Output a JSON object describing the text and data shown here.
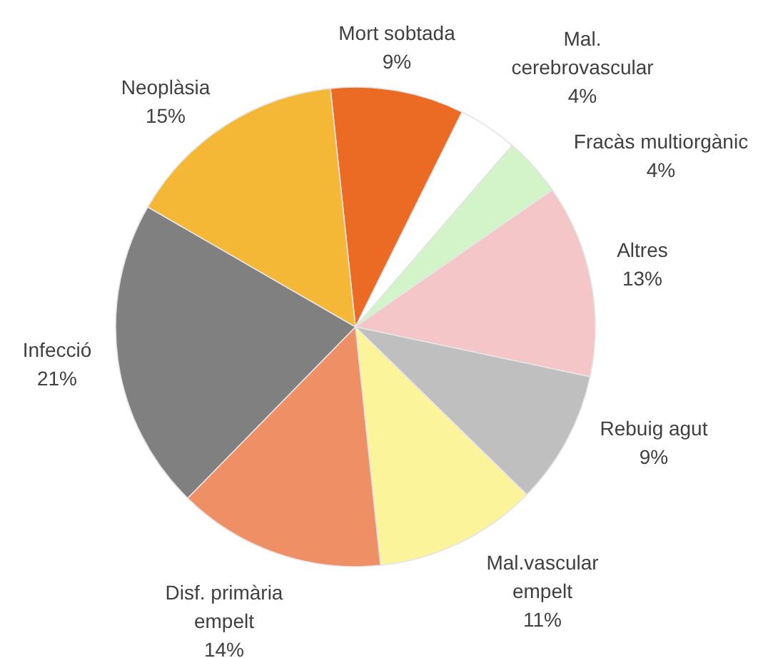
{
  "chart_data": {
    "type": "pie",
    "categories": [
      "Mort sobtada",
      "Mal. cerebrovascular",
      "Fracàs multiorgànic",
      "Altres",
      "Rebuig agut",
      "Mal.vascular empelt",
      "Disf. primària empelt",
      "Infecció",
      "Neoplàsia"
    ],
    "values": [
      9,
      4,
      4,
      13,
      9,
      11,
      14,
      21,
      15
    ],
    "value_labels": [
      "9%",
      "4%",
      "4%",
      "13%",
      "9%",
      "11%",
      "14%",
      "21%",
      "15%"
    ],
    "colors": [
      "#ec6b24",
      "#ffffff",
      "#d3f3c8",
      "#f5c6c8",
      "#bfbfbf",
      "#fbf49a",
      "#ee8f66",
      "#808080",
      "#f4b836"
    ]
  }
}
